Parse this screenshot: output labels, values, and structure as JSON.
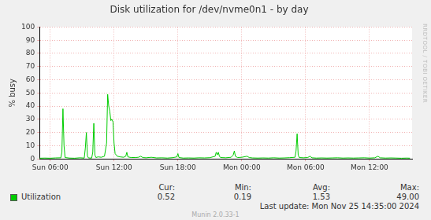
{
  "chart_data": {
    "type": "line",
    "title": "Disk utilization for /dev/nvme0n1 - by day",
    "y_label": "% busy",
    "x": [
      5.0,
      5.5,
      6.0,
      6.5,
      7.0,
      7.1,
      7.2,
      7.3,
      7.4,
      7.8,
      8.3,
      8.8,
      9.2,
      9.3,
      9.4,
      9.5,
      9.6,
      9.9,
      10.0,
      10.1,
      10.2,
      10.3,
      10.5,
      10.8,
      11.1,
      11.3,
      11.4,
      11.5,
      11.6,
      11.7,
      11.8,
      11.9,
      12.0,
      12.1,
      12.3,
      12.6,
      12.9,
      13.1,
      13.2,
      13.3,
      13.6,
      14.0,
      14.3,
      14.5,
      14.7,
      15.0,
      15.5,
      16.0,
      16.5,
      17.0,
      17.5,
      17.9,
      18.0,
      18.1,
      18.5,
      19.0,
      19.5,
      20.0,
      20.5,
      21.0,
      21.5,
      21.6,
      21.7,
      21.8,
      21.9,
      22.0,
      22.5,
      23.0,
      23.2,
      23.3,
      23.4,
      23.6,
      24.0,
      24.5,
      24.7,
      25.0,
      25.5,
      26.0,
      26.5,
      27.0,
      27.5,
      28.0,
      28.5,
      29.0,
      29.1,
      29.2,
      29.3,
      29.4,
      29.8,
      30.2,
      30.4,
      30.6,
      31.0,
      31.5,
      32.0,
      32.5,
      33.0,
      33.5,
      34.0,
      34.5,
      35.0,
      35.5,
      36.0,
      36.5,
      36.8,
      37.0,
      37.5,
      38.0,
      38.5,
      39.0,
      39.5,
      39.8
    ],
    "series": [
      {
        "name": "Utilization",
        "color": "#00cc00",
        "values": [
          0.5,
          0.6,
          0.5,
          0.7,
          0.8,
          5,
          38,
          10,
          1.0,
          0.6,
          0.5,
          0.8,
          0.6,
          8,
          20,
          2,
          0.7,
          0.6,
          5,
          27,
          3,
          1.0,
          1.5,
          1.2,
          2,
          12,
          49,
          40,
          36,
          29,
          30,
          28,
          12,
          4,
          2,
          1.5,
          1.2,
          2,
          5,
          1.5,
          1.0,
          1.0,
          1.2,
          2,
          1.0,
          0.8,
          1.2,
          0.7,
          0.8,
          0.6,
          0.9,
          1.5,
          4,
          1.0,
          0.6,
          0.7,
          0.6,
          0.8,
          0.7,
          0.9,
          2,
          5,
          3,
          5,
          2,
          1.0,
          0.8,
          1.2,
          3,
          6,
          2,
          1.0,
          1.2,
          2,
          1.0,
          0.7,
          0.6,
          0.7,
          0.6,
          0.8,
          0.6,
          0.7,
          0.9,
          1.2,
          6,
          19,
          3,
          1.0,
          0.8,
          1.0,
          2,
          0.8,
          0.6,
          0.7,
          0.6,
          0.7,
          0.8,
          0.6,
          0.7,
          0.6,
          0.7,
          0.8,
          0.6,
          0.8,
          2,
          0.8,
          0.6,
          0.7,
          0.6,
          0.5,
          0.6,
          0.52
        ]
      }
    ],
    "xlim": [
      5,
      40
    ],
    "xticks": [
      {
        "value": 6,
        "label": "Sun 06:00"
      },
      {
        "value": 12,
        "label": "Sun 12:00"
      },
      {
        "value": 18,
        "label": "Sun 18:00"
      },
      {
        "value": 24,
        "label": "Mon 00:00"
      },
      {
        "value": 30,
        "label": "Mon 06:00"
      },
      {
        "value": 36,
        "label": "Mon 12:00"
      }
    ],
    "ylim": [
      0,
      100
    ],
    "yticks": [
      0,
      10,
      20,
      30,
      40,
      50,
      60,
      70,
      80,
      90,
      100
    ],
    "grid": true,
    "legend": "bottom",
    "stats": [
      {
        "name": "Cur:",
        "value": 0.52
      },
      {
        "name": "Min:",
        "value": 0.19
      },
      {
        "name": "Avg:",
        "value": 1.53
      },
      {
        "name": "Max:",
        "value": 49,
        "label": "49.00"
      }
    ],
    "side_text": "RRDTOOL / TOBI OETIKER",
    "last_update": "Last update: Mon Nov 25 14:35:00 2024",
    "footer": "Munin 2.0.33-1"
  }
}
